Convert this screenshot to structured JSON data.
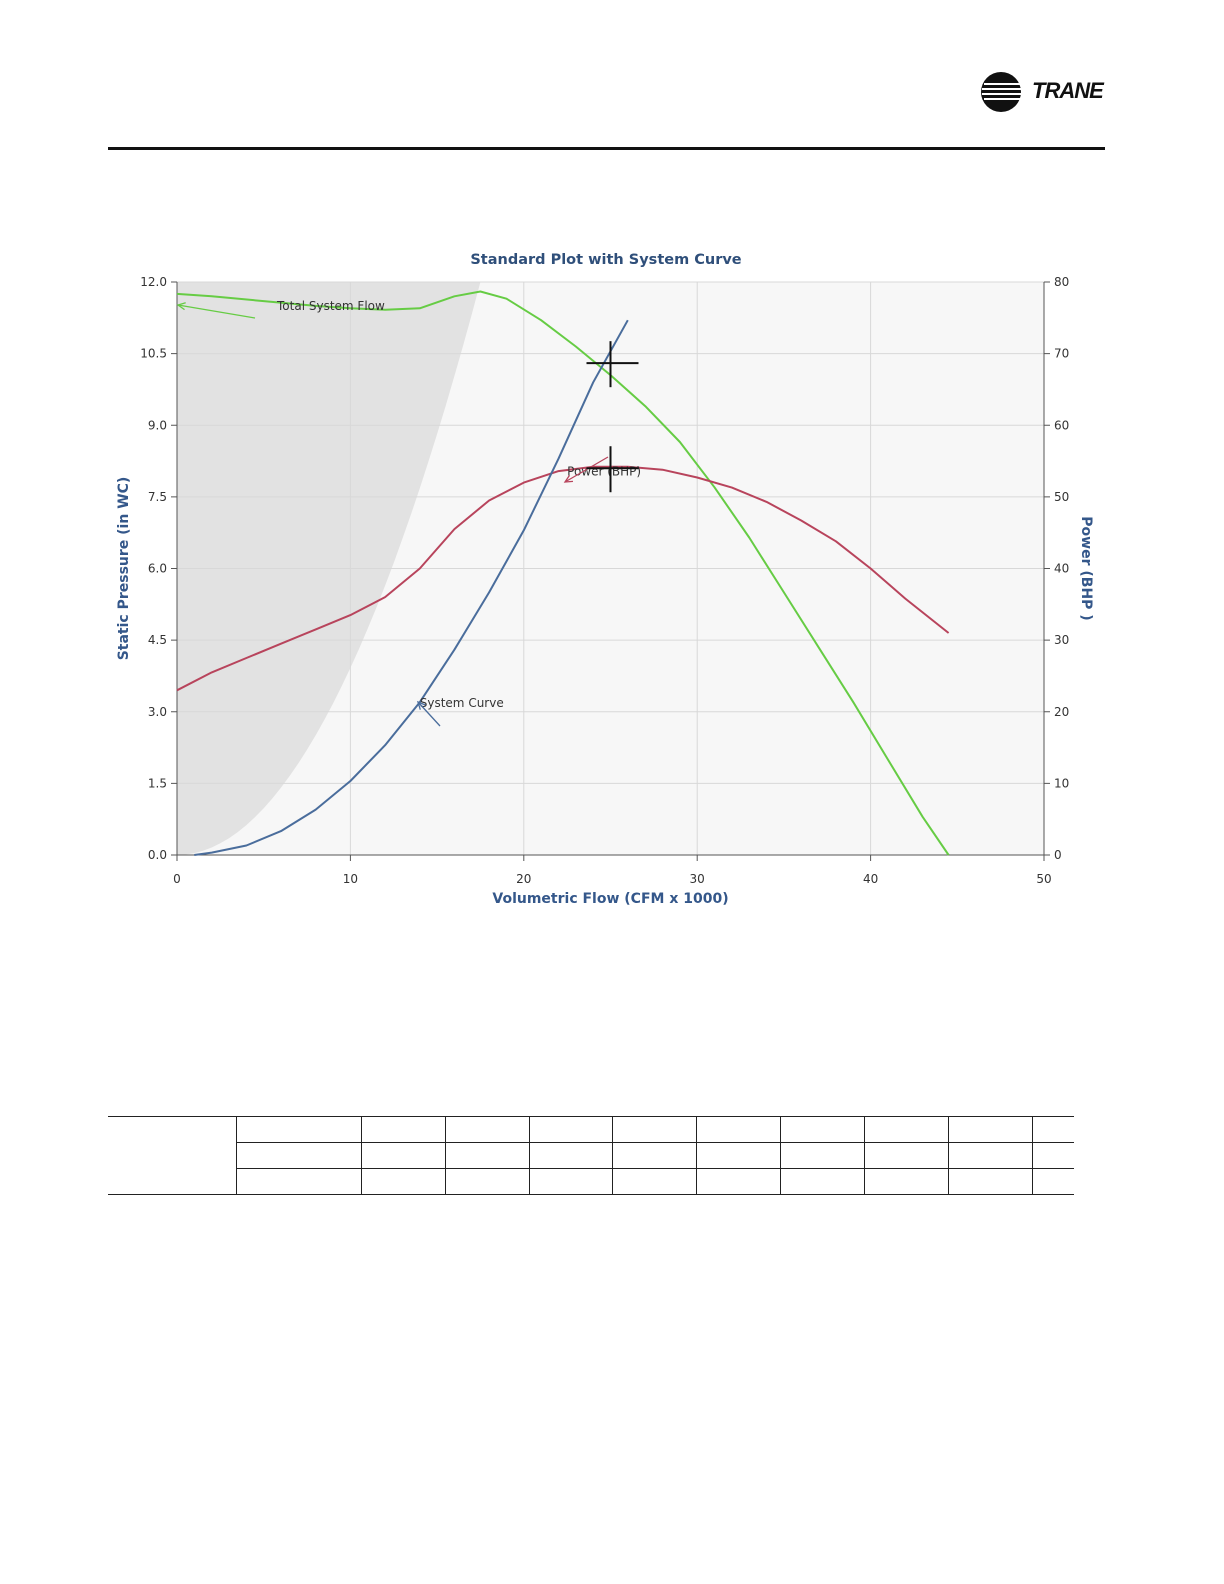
{
  "logo": {
    "text": "TRANE"
  },
  "chart_data": {
    "type": "line",
    "title": "Standard Plot with System Curve",
    "xlabel": "Volumetric Flow (CFM x 1000)",
    "ylabel": "Static Pressure (in WC)",
    "y2label": "Power (BHP )",
    "xlim": [
      0,
      50
    ],
    "ylim": [
      0,
      12
    ],
    "y2lim": [
      0,
      80
    ],
    "xticks": [
      0,
      10,
      20,
      30,
      40,
      50
    ],
    "yticks": [
      "0.0",
      "1.5",
      "3.0",
      "4.5",
      "6.0",
      "7.5",
      "9.0",
      "10.5",
      "12.0"
    ],
    "y2ticks": [
      "0",
      "10",
      "20",
      "30",
      "40",
      "50",
      "60",
      "70",
      "80"
    ],
    "grid": true,
    "series": [
      {
        "name": "Total System Flow",
        "axis": "left",
        "color": "#66cc44",
        "x": [
          0,
          2,
          5,
          8,
          10,
          12,
          14,
          16,
          17.5,
          19,
          21,
          23,
          25,
          27,
          29,
          31,
          33,
          35,
          37,
          39,
          41,
          43,
          44.5
        ],
        "y": [
          11.75,
          11.7,
          11.6,
          11.5,
          11.45,
          11.42,
          11.45,
          11.7,
          11.8,
          11.65,
          11.2,
          10.65,
          10.05,
          9.4,
          8.65,
          7.7,
          6.65,
          5.5,
          4.35,
          3.2,
          2.0,
          0.8,
          0.0
        ]
      },
      {
        "name": "Power (BHP)",
        "axis": "right",
        "color": "#b8445c",
        "x": [
          0,
          2,
          4,
          6,
          8,
          10,
          12,
          14,
          16,
          18,
          20,
          22,
          24,
          26,
          28,
          30,
          32,
          34,
          36,
          38,
          40,
          42,
          44.5
        ],
        "y": [
          23,
          25.5,
          27.5,
          29.5,
          31.5,
          33.5,
          36,
          40,
          45.5,
          49.5,
          52,
          53.6,
          54.2,
          54.2,
          53.8,
          52.7,
          51.3,
          49.3,
          46.7,
          43.8,
          40,
          35.8,
          31
        ]
      },
      {
        "name": "System Curve",
        "axis": "left",
        "color": "#4a6d9c",
        "x": [
          1,
          2,
          4,
          6,
          8,
          10,
          12,
          14,
          16,
          18,
          20,
          22,
          24,
          26
        ],
        "y": [
          0.0,
          0.05,
          0.2,
          0.5,
          0.95,
          1.55,
          2.3,
          3.2,
          4.3,
          5.5,
          6.8,
          8.3,
          9.9,
          11.2
        ]
      }
    ],
    "annotations": [
      {
        "text": "Total System Flow",
        "x": 4.5,
        "y": 11.5
      },
      {
        "text": "Power (BHP)",
        "x": 22.5,
        "y": 7.95
      },
      {
        "text": "System Curve",
        "x": 14,
        "y": 3.1
      }
    ],
    "markers": [
      {
        "x": 25,
        "y": 10.3
      },
      {
        "x": 25,
        "y": 8.1
      }
    ]
  },
  "table": {
    "rows": [
      [
        "",
        "",
        "",
        "",
        "",
        "",
        "",
        "",
        "",
        "",
        ""
      ],
      [
        "",
        "",
        "",
        "",
        "",
        "",
        "",
        "",
        "",
        "",
        ""
      ],
      [
        "",
        "",
        "",
        "",
        "",
        "",
        "",
        "",
        "",
        "",
        ""
      ]
    ]
  }
}
